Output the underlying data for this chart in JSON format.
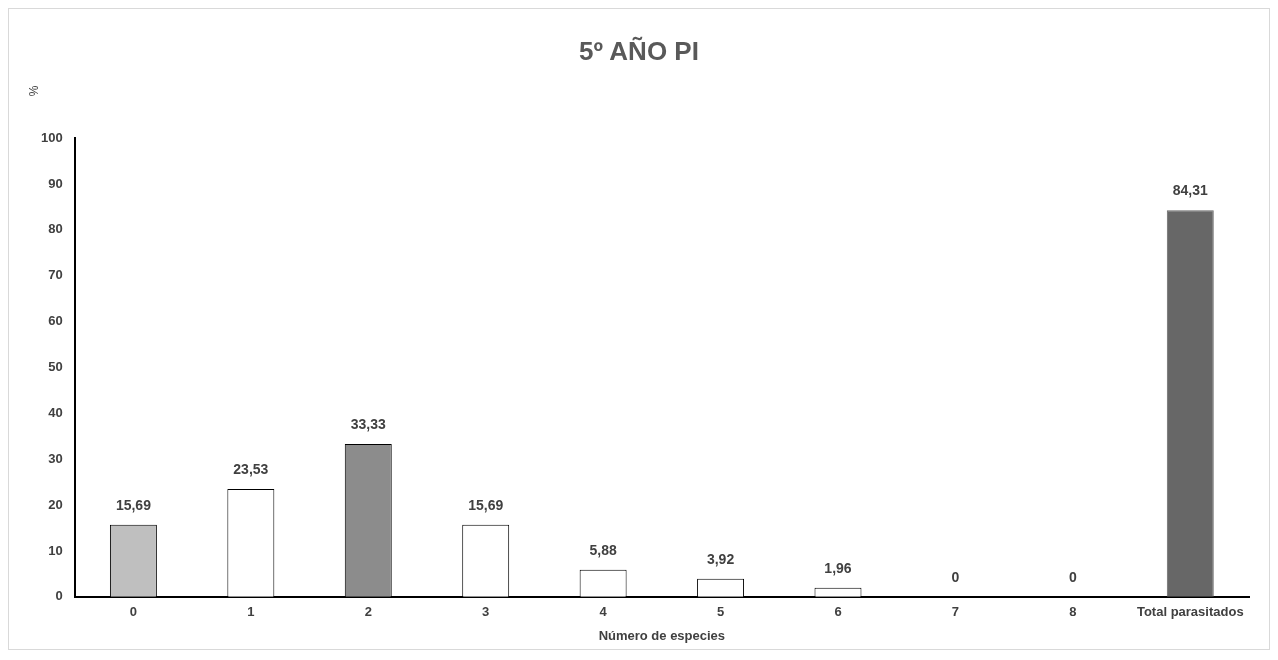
{
  "chart_data": {
    "type": "bar",
    "title": "5º AÑO PI",
    "xlabel": "Número de especies",
    "ylabel": "%",
    "categories": [
      "0",
      "1",
      "2",
      "3",
      "4",
      "5",
      "6",
      "7",
      "8",
      "Total parasitados"
    ],
    "values": [
      15.69,
      23.53,
      33.33,
      15.69,
      5.88,
      3.92,
      1.96,
      0,
      0,
      84.31
    ],
    "colors": [
      "#bfbfbf",
      "#ffffff",
      "#8c8c8c",
      "#ffffff",
      "#ffffff",
      "#ffffff",
      "#ffffff",
      "#ffffff",
      "#ffffff",
      "#676767"
    ],
    "value_labels": [
      "15,69",
      "23,53",
      "33,33",
      "15,69",
      "5,88",
      "3,92",
      "1,96",
      "0",
      "0",
      "84,31"
    ],
    "ylim": [
      0,
      100
    ],
    "yticks": [
      0,
      10,
      20,
      30,
      40,
      50,
      60,
      70,
      80,
      90,
      100
    ],
    "grid": false,
    "legend": false
  }
}
